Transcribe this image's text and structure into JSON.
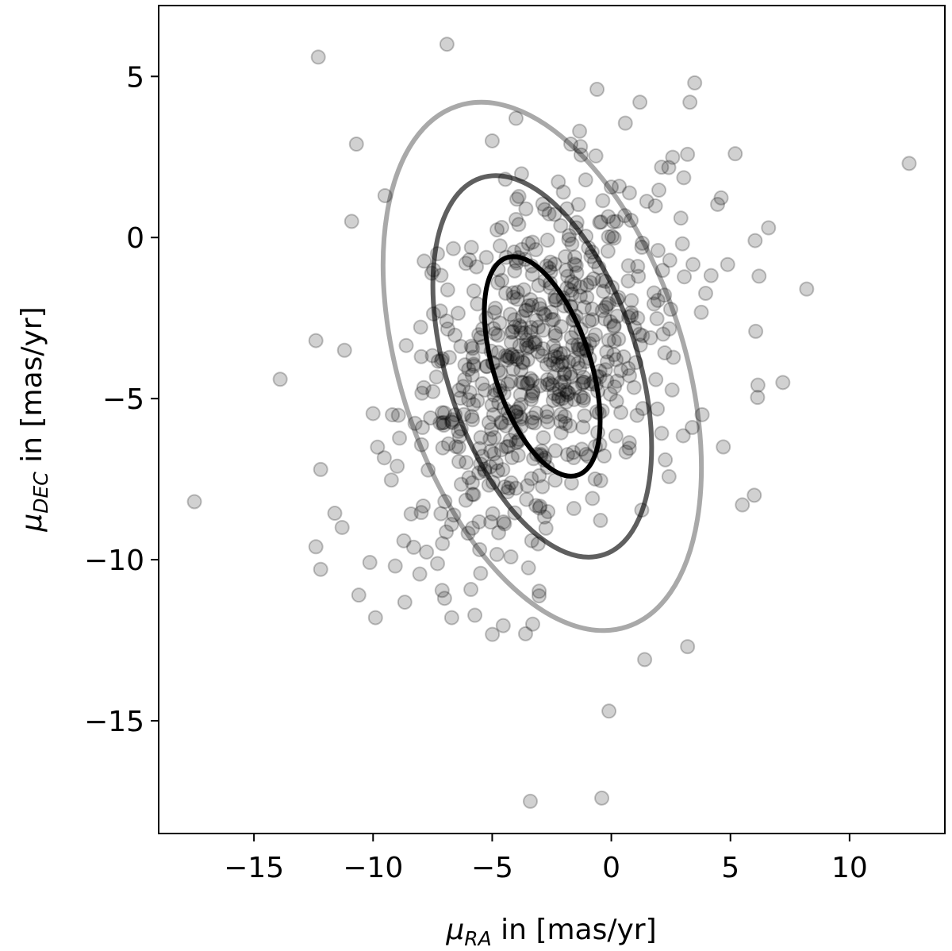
{
  "chart_data": {
    "type": "scatter",
    "xlabel": {
      "symbol": "μ",
      "sub": "RA",
      "suffix": " in [mas/yr]"
    },
    "ylabel": {
      "symbol": "μ",
      "sub": "DEC",
      "suffix": " in [mas/yr]"
    },
    "xlim": [
      -19,
      14
    ],
    "ylim": [
      -18.5,
      7.2
    ],
    "xticks": [
      -15,
      -10,
      -5,
      0,
      5,
      10
    ],
    "yticks": [
      -15,
      -10,
      -5,
      0,
      5
    ],
    "xtick_labels": [
      "−15",
      "−10",
      "−5",
      "0",
      "5",
      "10"
    ],
    "ytick_labels": [
      "−15",
      "−10",
      "−5",
      "0",
      "5"
    ],
    "grid": false,
    "legend": "none",
    "point_color": "#000000",
    "point_opacity": 0.18,
    "ellipses": [
      {
        "cx": -2.9,
        "cy": -4.0,
        "rx": 4.05,
        "ry": 7.1,
        "angle_deg": 18,
        "color": "#000000",
        "opacity": 1.0
      },
      {
        "cx": -2.9,
        "cy": -4.0,
        "rx": 8.0,
        "ry": 12.3,
        "angle_deg": 18,
        "color": "#5f5f5f",
        "opacity": 1.0
      },
      {
        "cx": -2.9,
        "cy": -4.0,
        "rx": 11.9,
        "ry": 17.0,
        "angle_deg": 18,
        "color": "#a9a9a9",
        "opacity": 1.0
      }
    ],
    "cluster": {
      "cx": -2.9,
      "cy": -4.0,
      "sx": 2.9,
      "sy": 2.85,
      "n": 620,
      "seed": 7
    },
    "outliers": [
      [
        -6.9,
        6.0
      ],
      [
        -12.3,
        5.6
      ],
      [
        -10.7,
        2.9
      ],
      [
        -13.9,
        -4.4
      ],
      [
        -17.5,
        -8.2
      ],
      [
        12.5,
        2.3
      ],
      [
        8.2,
        -1.6
      ],
      [
        7.2,
        -4.5
      ],
      [
        -3.6,
        -12.3
      ],
      [
        -3.4,
        -17.5
      ],
      [
        -0.4,
        -17.4
      ],
      [
        -0.1,
        -14.7
      ],
      [
        3.2,
        -12.7
      ],
      [
        1.4,
        -13.1
      ],
      [
        -12.4,
        -9.6
      ],
      [
        -12.2,
        -10.3
      ],
      [
        -10.6,
        -11.1
      ],
      [
        -9.9,
        -11.8
      ],
      [
        -7.0,
        -11.2
      ],
      [
        -6.7,
        -11.8
      ],
      [
        -12.2,
        -7.2
      ],
      [
        -11.3,
        -9.0
      ],
      [
        5.5,
        -8.3
      ],
      [
        6.0,
        -8.0
      ],
      [
        6.2,
        -1.2
      ],
      [
        6.6,
        0.3
      ],
      [
        -4.0,
        3.7
      ],
      [
        -5.0,
        3.0
      ],
      [
        -0.6,
        4.6
      ],
      [
        1.2,
        4.2
      ],
      [
        3.3,
        4.2
      ],
      [
        3.5,
        4.8
      ],
      [
        5.2,
        2.6
      ],
      [
        -1.7,
        2.9
      ],
      [
        -3.3,
        -12.0
      ],
      [
        -10.9,
        0.5
      ],
      [
        -9.5,
        1.3
      ],
      [
        -12.4,
        -3.2
      ],
      [
        -11.2,
        -3.5
      ],
      [
        4.7,
        -6.5
      ]
    ]
  }
}
